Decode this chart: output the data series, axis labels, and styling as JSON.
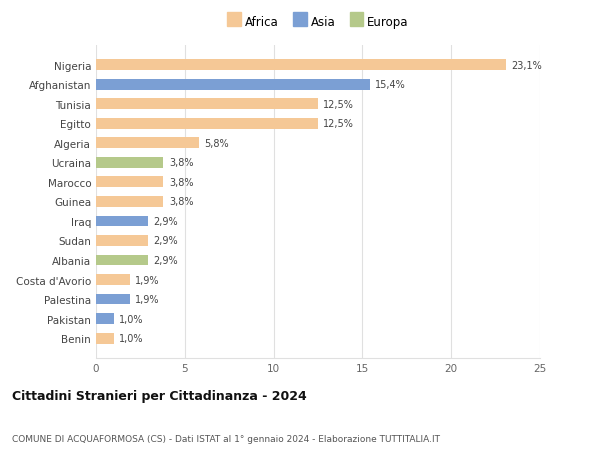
{
  "countries": [
    "Nigeria",
    "Afghanistan",
    "Tunisia",
    "Egitto",
    "Algeria",
    "Ucraina",
    "Marocco",
    "Guinea",
    "Iraq",
    "Sudan",
    "Albania",
    "Costa d'Avorio",
    "Palestina",
    "Pakistan",
    "Benin"
  ],
  "values": [
    23.1,
    15.4,
    12.5,
    12.5,
    5.8,
    3.8,
    3.8,
    3.8,
    2.9,
    2.9,
    2.9,
    1.9,
    1.9,
    1.0,
    1.0
  ],
  "labels": [
    "23,1%",
    "15,4%",
    "12,5%",
    "12,5%",
    "5,8%",
    "3,8%",
    "3,8%",
    "3,8%",
    "2,9%",
    "2,9%",
    "2,9%",
    "1,9%",
    "1,9%",
    "1,0%",
    "1,0%"
  ],
  "continents": [
    "Africa",
    "Asia",
    "Africa",
    "Africa",
    "Africa",
    "Europa",
    "Africa",
    "Africa",
    "Asia",
    "Africa",
    "Europa",
    "Africa",
    "Asia",
    "Asia",
    "Africa"
  ],
  "colors": {
    "Africa": "#F5C896",
    "Asia": "#7B9FD4",
    "Europa": "#B5C98A"
  },
  "xlim": [
    0,
    25
  ],
  "xticks": [
    0,
    5,
    10,
    15,
    20,
    25
  ],
  "title": "Cittadini Stranieri per Cittadinanza - 2024",
  "subtitle": "COMUNE DI ACQUAFORMOSA (CS) - Dati ISTAT al 1° gennaio 2024 - Elaborazione TUTTITALIA.IT",
  "bg_color": "#FFFFFF",
  "grid_color": "#E0E0E0"
}
